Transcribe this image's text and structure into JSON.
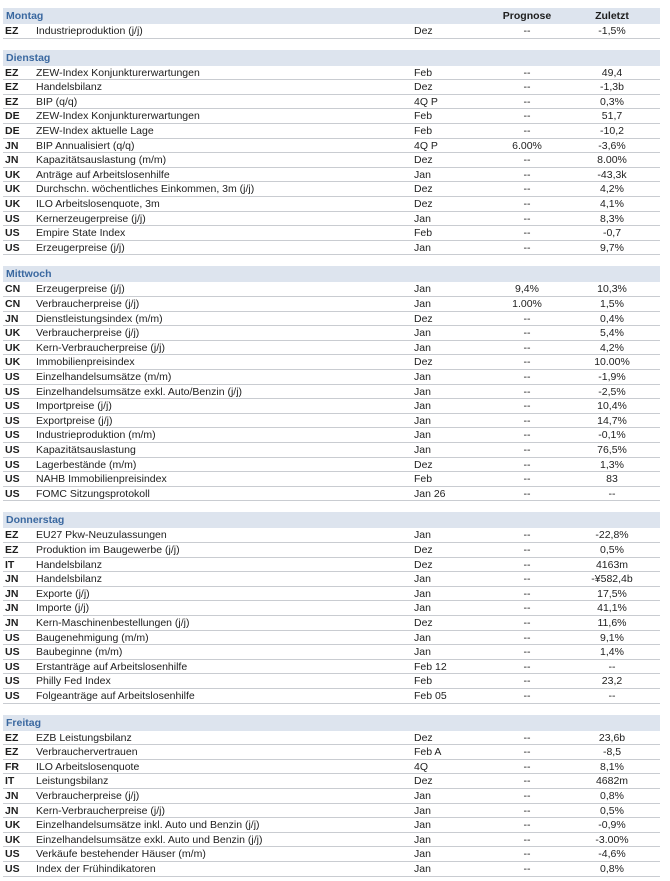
{
  "columns": {
    "forecast": "Prognose",
    "last": "Zuletzt"
  },
  "sections": [
    {
      "day": "Montag",
      "rows": [
        [
          "EZ",
          "Industrieproduktion (j/j)",
          "Dez",
          "--",
          "-1,5%"
        ]
      ]
    },
    {
      "day": "Dienstag",
      "rows": [
        [
          "EZ",
          "ZEW-Index Konjunkturerwartungen",
          "Feb",
          "--",
          "49,4"
        ],
        [
          "EZ",
          "Handelsbilanz",
          "Dez",
          "--",
          "-1,3b"
        ],
        [
          "EZ",
          "BIP (q/q)",
          "4Q P",
          "--",
          "0,3%"
        ],
        [
          "DE",
          "ZEW-Index Konjunkturerwartungen",
          "Feb",
          "--",
          "51,7"
        ],
        [
          "DE",
          "ZEW-Index aktuelle Lage",
          "Feb",
          "--",
          "-10,2"
        ],
        [
          "JN",
          "BIP Annualisiert (q/q)",
          "4Q P",
          "6.00%",
          "-3,6%"
        ],
        [
          "JN",
          "Kapazitätsauslastung (m/m)",
          "Dez",
          "--",
          "8.00%"
        ],
        [
          "UK",
          "Anträge auf Arbeitslosenhilfe",
          "Jan",
          "--",
          "-43,3k"
        ],
        [
          "UK",
          "Durchschn. wöchentliches Einkommen, 3m (j/j)",
          "Dez",
          "--",
          "4,2%"
        ],
        [
          "UK",
          "ILO Arbeitslosenquote, 3m",
          "Dez",
          "--",
          "4,1%"
        ],
        [
          "US",
          "Kernerzeugerpreise (j/j)",
          "Jan",
          "--",
          "8,3%"
        ],
        [
          "US",
          "Empire State Index",
          "Feb",
          "--",
          "-0,7"
        ],
        [
          "US",
          "Erzeugerpreise (j/j)",
          "Jan",
          "--",
          "9,7%"
        ]
      ]
    },
    {
      "day": "Mittwoch",
      "rows": [
        [
          "CN",
          "Erzeugerpreise (j/j)",
          "Jan",
          "9,4%",
          "10,3%"
        ],
        [
          "CN",
          "Verbraucherpreise (j/j)",
          "Jan",
          "1.00%",
          "1,5%"
        ],
        [
          "JN",
          "Dienstleistungsindex (m/m)",
          "Dez",
          "--",
          "0,4%"
        ],
        [
          "UK",
          "Verbraucherpreise (j/j)",
          "Jan",
          "--",
          "5,4%"
        ],
        [
          "UK",
          "Kern-Verbraucherpreise (j/j)",
          "Jan",
          "--",
          "4,2%"
        ],
        [
          "UK",
          "Immobilienpreisindex",
          "Dez",
          "--",
          "10.00%"
        ],
        [
          "US",
          "Einzelhandelsumsätze (m/m)",
          "Jan",
          "--",
          "-1,9%"
        ],
        [
          "US",
          "Einzelhandelsumsätze exkl. Auto/Benzin (j/j)",
          "Jan",
          "--",
          "-2,5%"
        ],
        [
          "US",
          "Importpreise (j/j)",
          "Jan",
          "--",
          "10,4%"
        ],
        [
          "US",
          "Exportpreise (j/j)",
          "Jan",
          "--",
          "14,7%"
        ],
        [
          "US",
          "Industrieproduktion (m/m)",
          "Jan",
          "--",
          "-0,1%"
        ],
        [
          "US",
          "Kapazitätsauslastung",
          "Jan",
          "--",
          "76,5%"
        ],
        [
          "US",
          "Lagerbestände (m/m)",
          "Dez",
          "--",
          "1,3%"
        ],
        [
          "US",
          "NAHB Immobilienpreisindex",
          "Feb",
          "--",
          "83"
        ],
        [
          "US",
          "FOMC Sitzungsprotokoll",
          "Jan 26",
          "--",
          "--"
        ]
      ]
    },
    {
      "day": "Donnerstag",
      "rows": [
        [
          "EZ",
          "EU27 Pkw-Neuzulassungen",
          "Jan",
          "--",
          "-22,8%"
        ],
        [
          "EZ",
          "Produktion im Baugewerbe (j/j)",
          "Dez",
          "--",
          "0,5%"
        ],
        [
          "IT",
          "Handelsbilanz",
          "Dez",
          "--",
          "4163m"
        ],
        [
          "JN",
          "Handelsbilanz",
          "Jan",
          "--",
          "-¥582,4b"
        ],
        [
          "JN",
          "Exporte (j/j)",
          "Jan",
          "--",
          "17,5%"
        ],
        [
          "JN",
          "Importe (j/j)",
          "Jan",
          "--",
          "41,1%"
        ],
        [
          "JN",
          "Kern-Maschinenbestellungen (j/j)",
          "Dez",
          "--",
          "11,6%"
        ],
        [
          "US",
          "Baugenehmigung (m/m)",
          "Jan",
          "--",
          "9,1%"
        ],
        [
          "US",
          "Baubeginne (m/m)",
          "Jan",
          "--",
          "1,4%"
        ],
        [
          "US",
          "Erstanträge auf Arbeitslosenhilfe",
          "Feb 12",
          "--",
          "--"
        ],
        [
          "US",
          "Philly Fed Index",
          "Feb",
          "--",
          "23,2"
        ],
        [
          "US",
          "Folgeanträge auf Arbeitslosenhilfe",
          "Feb 05",
          "--",
          "--"
        ]
      ]
    },
    {
      "day": "Freitag",
      "rows": [
        [
          "EZ",
          "EZB Leistungsbilanz",
          "Dez",
          "--",
          "23,6b"
        ],
        [
          "EZ",
          "Verbrauchervertrauen",
          "Feb A",
          "--",
          "-8,5"
        ],
        [
          "FR",
          "ILO Arbeitslosenquote",
          "4Q",
          "--",
          "8,1%"
        ],
        [
          "IT",
          "Leistungsbilanz",
          "Dez",
          "--",
          "4682m"
        ],
        [
          "JN",
          "Verbraucherpreise (j/j)",
          "Jan",
          "--",
          "0,8%"
        ],
        [
          "JN",
          "Kern-Verbraucherpreise (j/j)",
          "Jan",
          "--",
          "0,5%"
        ],
        [
          "UK",
          "Einzelhandelsumsätze inkl. Auto und Benzin (j/j)",
          "Jan",
          "--",
          "-0,9%"
        ],
        [
          "UK",
          "Einzelhandelsumsätze exkl. Auto und Benzin (j/j)",
          "Jan",
          "--",
          "-3.00%"
        ],
        [
          "US",
          "Verkäufe bestehender Häuser (m/m)",
          "Jan",
          "--",
          "-4,6%"
        ],
        [
          "US",
          "Index der Frühindikatoren",
          "Jan",
          "--",
          "0,8%"
        ]
      ]
    }
  ]
}
